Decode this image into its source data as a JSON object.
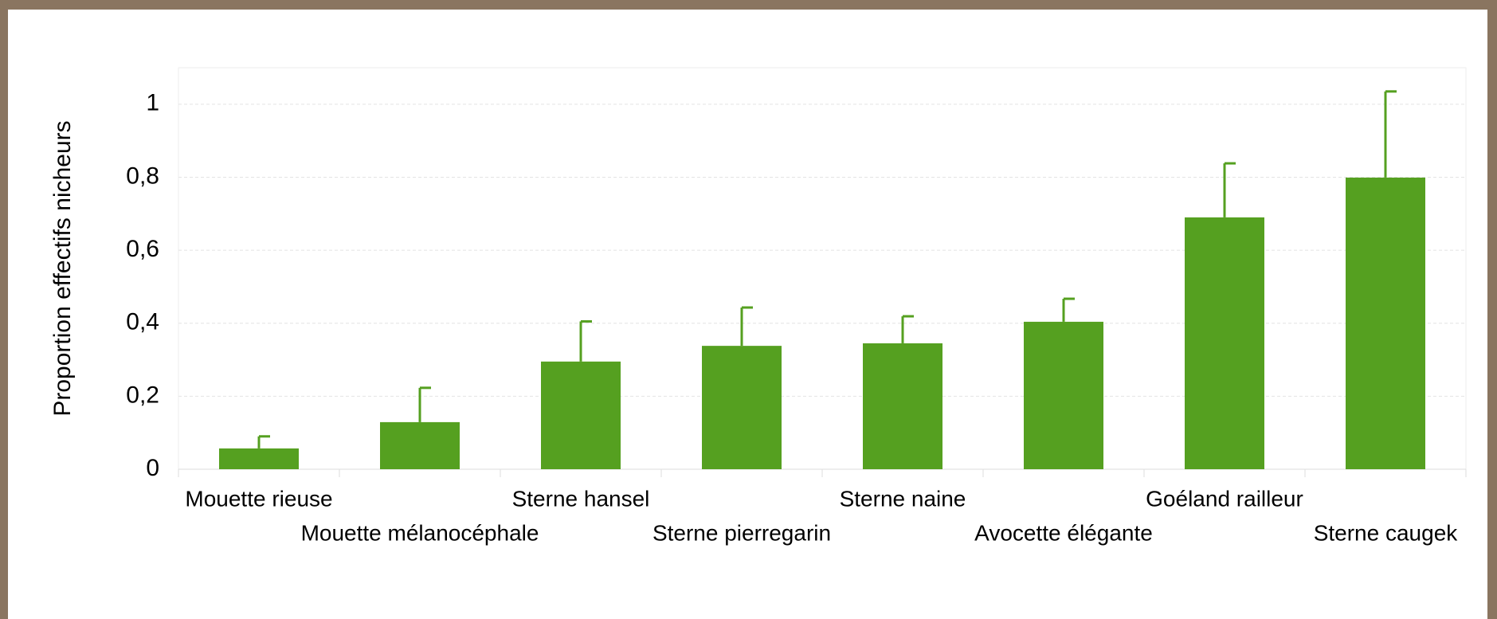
{
  "chart_data": {
    "type": "bar",
    "ylabel": "Proportion  effectifs nicheurs",
    "categories": [
      "Mouette rieuse",
      "Mouette mélanocéphale",
      "Sterne hansel",
      "Sterne pierregarin",
      "Sterne naine",
      "Avocette élégante",
      "Goéland railleur",
      "Sterne caugek"
    ],
    "values": [
      0.057,
      0.129,
      0.295,
      0.338,
      0.345,
      0.404,
      0.69,
      0.799
    ],
    "errors": [
      0.033,
      0.094,
      0.11,
      0.105,
      0.074,
      0.063,
      0.148,
      0.236
    ],
    "color": "#55a020",
    "ylim": [
      0,
      1.1
    ],
    "yticks": [
      0,
      {
        "value": 0.2,
        "label": "0,2"
      },
      {
        "value": 0.4,
        "label": "0,4"
      },
      {
        "value": 0.6,
        "label": "0,6"
      },
      {
        "value": 0.8,
        "label": "0,8"
      },
      1
    ],
    "grid": true
  }
}
